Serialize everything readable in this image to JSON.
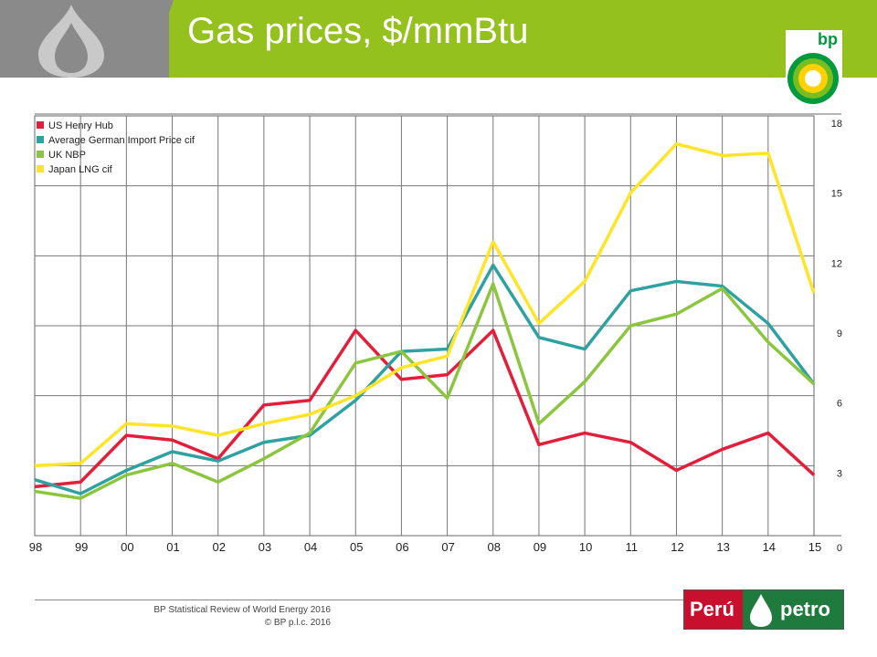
{
  "slide": {
    "title": "Gas prices, $/mmBtu"
  },
  "logos": {
    "bp_text": "bp",
    "peru_left": "Perú",
    "peru_right": "petro"
  },
  "footer": {
    "line1": "BP Statistical Review of World Energy 2016",
    "line2": "© BP p.l.c. 2016"
  },
  "chart_data": {
    "type": "line",
    "x": [
      "98",
      "99",
      "00",
      "01",
      "02",
      "03",
      "04",
      "05",
      "06",
      "07",
      "08",
      "09",
      "10",
      "11",
      "12",
      "13",
      "14",
      "15"
    ],
    "ylim": [
      0,
      18
    ],
    "yticks": [
      0,
      3,
      6,
      9,
      12,
      15,
      18
    ],
    "grid": true,
    "legend_position": "top-left",
    "series": [
      {
        "name": "US Henry Hub",
        "color": "#e31e3b",
        "values": [
          2.1,
          2.3,
          4.3,
          4.1,
          3.3,
          5.6,
          5.8,
          8.8,
          6.7,
          6.9,
          8.8,
          3.9,
          4.4,
          4.0,
          2.8,
          3.7,
          4.4,
          2.6
        ]
      },
      {
        "name": "Average German Import Price cif",
        "color": "#2fa1a1",
        "values": [
          2.4,
          1.8,
          2.8,
          3.6,
          3.2,
          4.0,
          4.3,
          5.8,
          7.9,
          8.0,
          11.6,
          8.5,
          8.0,
          10.5,
          10.9,
          10.7,
          9.1,
          6.5
        ]
      },
      {
        "name": "UK NBP",
        "color": "#8cc63f",
        "values": [
          1.9,
          1.6,
          2.6,
          3.1,
          2.3,
          3.3,
          4.4,
          7.4,
          7.9,
          5.9,
          10.8,
          4.8,
          6.6,
          9.0,
          9.5,
          10.6,
          8.3,
          6.5
        ]
      },
      {
        "name": "Japan LNG cif",
        "color": "#ffe427",
        "values": [
          3.0,
          3.1,
          4.8,
          4.7,
          4.3,
          4.8,
          5.2,
          6.0,
          7.2,
          7.7,
          12.6,
          9.1,
          10.9,
          14.7,
          16.8,
          16.3,
          16.4,
          10.4
        ]
      }
    ]
  }
}
